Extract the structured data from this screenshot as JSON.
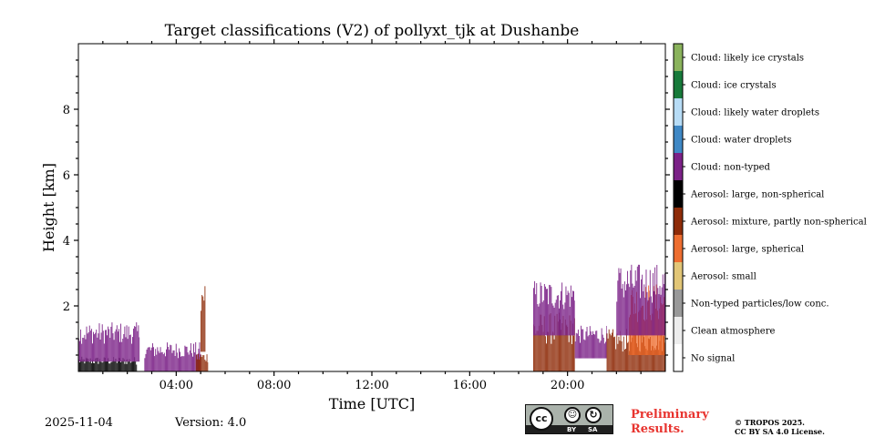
{
  "chart_data": {
    "type": "heatmap",
    "title": "Target classifications (V2) of pollyxt_tjk at Dushanbe",
    "xlabel": "Time [UTC]",
    "ylabel": "Height [km]",
    "xlim_hours": [
      0,
      24
    ],
    "ylim_km": [
      0,
      10
    ],
    "x_ticks": [
      {
        "value": 4,
        "label": "04:00"
      },
      {
        "value": 8,
        "label": "08:00"
      },
      {
        "value": 12,
        "label": "12:00"
      },
      {
        "value": 16,
        "label": "16:00"
      },
      {
        "value": 20,
        "label": "20:00"
      }
    ],
    "y_ticks": [
      {
        "value": 2,
        "label": "2"
      },
      {
        "value": 4,
        "label": "4"
      },
      {
        "value": 6,
        "label": "6"
      },
      {
        "value": 8,
        "label": "8"
      }
    ],
    "classes": [
      {
        "label": "No signal",
        "color": "#ffffff"
      },
      {
        "label": "Clean atmosphere",
        "color": "#ededed"
      },
      {
        "label": "Non-typed particles/low conc.",
        "color": "#999999"
      },
      {
        "label": "Aerosol: small",
        "color": "#e2c677"
      },
      {
        "label": "Aerosol: large, spherical",
        "color": "#ee6e30"
      },
      {
        "label": "Aerosol: mixture, partly non-spherical",
        "color": "#8e2b08"
      },
      {
        "label": "Aerosol: large, non-spherical",
        "color": "#000000"
      },
      {
        "label": "Cloud: non-typed",
        "color": "#7b2187"
      },
      {
        "label": "Cloud: water droplets",
        "color": "#3f88c5"
      },
      {
        "label": "Cloud: likely water droplets",
        "color": "#b7dcf6"
      },
      {
        "label": "Cloud: ice crystals",
        "color": "#177a3a"
      },
      {
        "label": "Cloud: likely ice crystals",
        "color": "#8ab35c"
      }
    ],
    "regions": [
      {
        "class": "Aerosol: large, non-spherical",
        "t0": 0.0,
        "t1": 2.4,
        "h0": 0.0,
        "h1": 0.45
      },
      {
        "class": "Cloud: non-typed",
        "t0": 0.0,
        "t1": 2.5,
        "h0": 0.3,
        "h1": 1.5
      },
      {
        "class": "Cloud: non-typed",
        "t0": 2.7,
        "t1": 5.0,
        "h0": 0.0,
        "h1": 0.9
      },
      {
        "class": "Aerosol: mixture, partly non-spherical",
        "t0": 4.8,
        "t1": 5.3,
        "h0": 0.0,
        "h1": 0.6
      },
      {
        "class": "Aerosol: mixture, partly non-spherical",
        "t0": 5.0,
        "t1": 5.2,
        "h0": 0.6,
        "h1": 3.0
      },
      {
        "class": "Aerosol: mixture, partly non-spherical",
        "t0": 18.6,
        "t1": 20.3,
        "h0": 0.0,
        "h1": 1.8
      },
      {
        "class": "Cloud: non-typed",
        "t0": 18.6,
        "t1": 20.3,
        "h0": 1.1,
        "h1": 2.8
      },
      {
        "class": "Cloud: non-typed",
        "t0": 20.3,
        "t1": 21.6,
        "h0": 0.4,
        "h1": 1.4
      },
      {
        "class": "Aerosol: mixture, partly non-spherical",
        "t0": 21.6,
        "t1": 24.0,
        "h0": 0.0,
        "h1": 1.3
      },
      {
        "class": "Aerosol: large, spherical",
        "t0": 22.5,
        "t1": 24.0,
        "h0": 0.5,
        "h1": 2.7
      },
      {
        "class": "Cloud: non-typed",
        "t0": 22.0,
        "t1": 24.0,
        "h0": 1.1,
        "h1": 3.3
      }
    ]
  },
  "footer": {
    "date": "2025-11-04",
    "version": "Version: 4.0",
    "preliminary_line1": "Preliminary",
    "preliminary_line2": "Results.",
    "copyright_line1": "© TROPOS 2025.",
    "copyright_line2": "CC BY SA 4.0 License."
  },
  "license_badge": {
    "cc": "cc",
    "by": "BY",
    "sa": "SA"
  }
}
